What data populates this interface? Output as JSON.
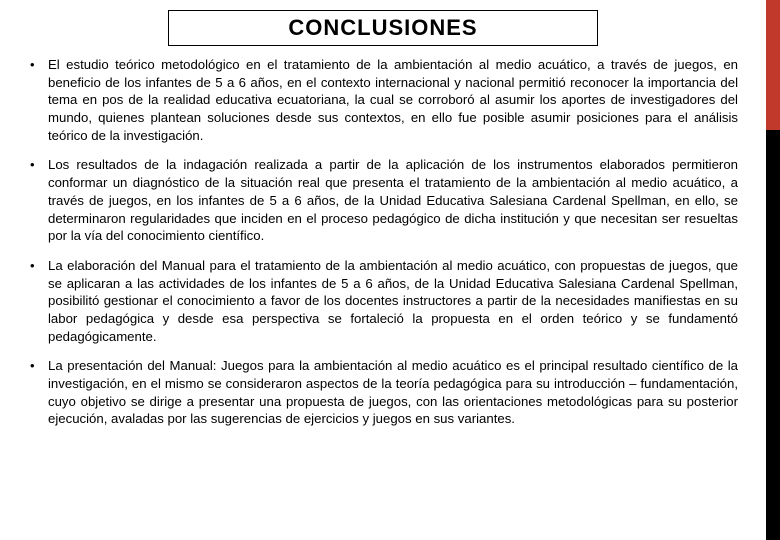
{
  "title": "CONCLUSIONES",
  "accent": {
    "top_color": "#c0392b",
    "bottom_color": "#000000"
  },
  "font": {
    "body_size_pt": 10,
    "title_size_pt": 17
  },
  "bullets": [
    "El estudio teórico metodológico en el tratamiento de la ambientación al medio acuático, a través de juegos, en beneficio de los infantes de 5 a 6 años, en el contexto internacional y nacional permitió reconocer la importancia del tema en pos de la realidad educativa ecuatoriana, la cual se corroboró al asumir los aportes de investigadores del mundo, quienes plantean soluciones desde sus contextos, en ello fue posible asumir posiciones para el análisis teórico de la investigación.",
    "Los resultados de la indagación realizada a partir de la aplicación de los instrumentos elaborados permitieron conformar un diagnóstico de la situación real que presenta el tratamiento de la ambientación al medio acuático, a través de juegos, en los infantes de 5 a 6 años, de la Unidad Educativa Salesiana Cardenal Spellman, en ello, se determinaron regularidades que inciden en el proceso pedagógico de dicha institución y que necesitan ser resueltas por la vía del conocimiento científico.",
    "La elaboración del Manual para el tratamiento de la ambientación al medio acuático, con propuestas de juegos, que se aplicaran a las actividades de los infantes de 5 a 6 años, de la Unidad Educativa Salesiana Cardenal Spellman, posibilitó gestionar el conocimiento a favor de los docentes instructores a partir de la necesidades manifiestas en su labor pedagógica y desde esa perspectiva se fortaleció la propuesta en el orden teórico y se fundamentó pedagógicamente.",
    "La presentación del Manual: Juegos para la ambientación al medio acuático es el principal resultado científico de la investigación, en el mismo se consideraron aspectos de la teoría pedagógica para su introducción – fundamentación, cuyo objetivo se dirige a presentar una propuesta de juegos, con las orientaciones metodológicas para su posterior ejecución, avaladas por las sugerencias de ejercicios y juegos en sus variantes."
  ]
}
